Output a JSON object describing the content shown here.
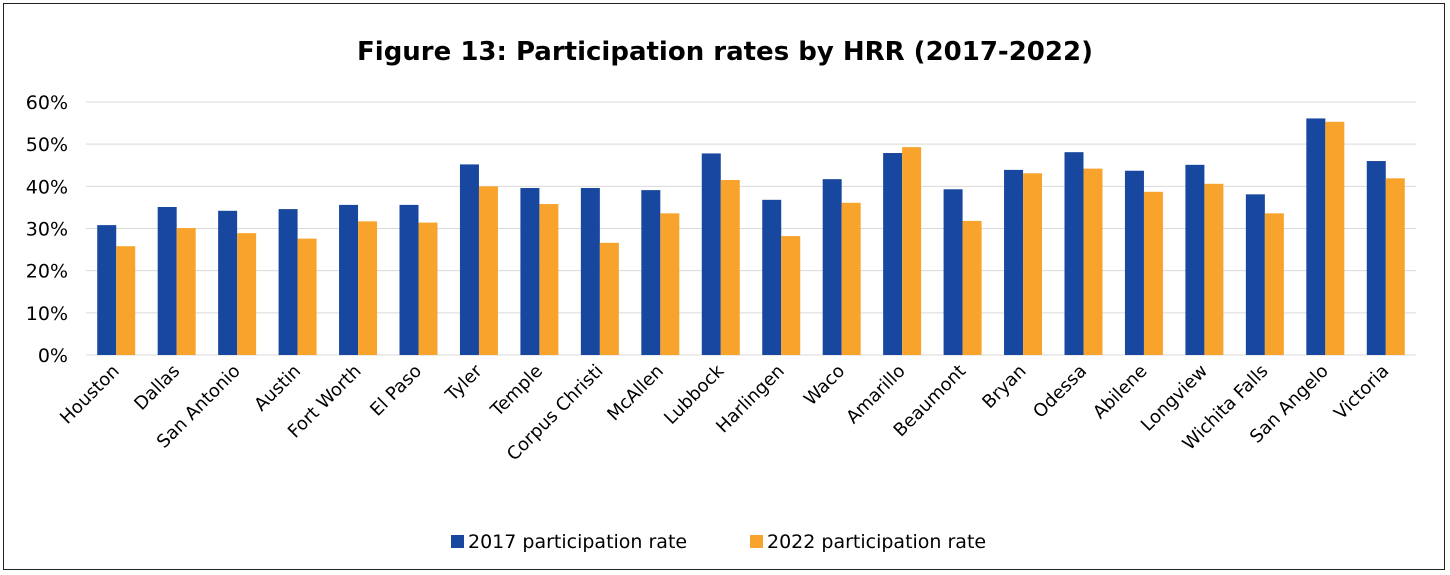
{
  "chart_data": {
    "type": "bar",
    "title": "Figure 13: Participation rates by HRR (2017-2022)",
    "xlabel": "",
    "ylabel": "",
    "ylim": [
      0,
      60
    ],
    "y_ticks": [
      "0%",
      "10%",
      "20%",
      "30%",
      "40%",
      "50%",
      "60%"
    ],
    "y_tick_values": [
      0,
      10,
      20,
      30,
      40,
      50,
      60
    ],
    "grid": true,
    "legend_position": "bottom",
    "categories": [
      "Houston",
      "Dallas",
      "San Antonio",
      "Austin",
      "Fort Worth",
      "El Paso",
      "Tyler",
      "Temple",
      "Corpus Christi",
      "McAllen",
      "Lubbock",
      "Harlingen",
      "Waco",
      "Amarillo",
      "Beaumont",
      "Bryan",
      "Odessa",
      "Abilene",
      "Longview",
      "Wichita Falls",
      "San Angelo",
      "Victoria"
    ],
    "series": [
      {
        "name": "2017 participation rate",
        "color": "#17479e",
        "values": [
          30.8,
          35.1,
          34.2,
          34.6,
          35.6,
          35.6,
          45.2,
          39.6,
          39.6,
          39.1,
          47.8,
          36.8,
          41.7,
          47.9,
          39.3,
          43.9,
          48.1,
          43.7,
          45.1,
          38.1,
          56.1,
          46.0
        ]
      },
      {
        "name": "2022 participation rate",
        "color": "#f8a42c",
        "values": [
          25.8,
          30.1,
          28.9,
          27.6,
          31.7,
          31.4,
          40.0,
          35.8,
          26.6,
          33.6,
          41.5,
          28.2,
          36.1,
          49.3,
          31.8,
          43.1,
          44.2,
          38.7,
          40.6,
          33.6,
          55.3,
          41.9
        ]
      }
    ]
  }
}
